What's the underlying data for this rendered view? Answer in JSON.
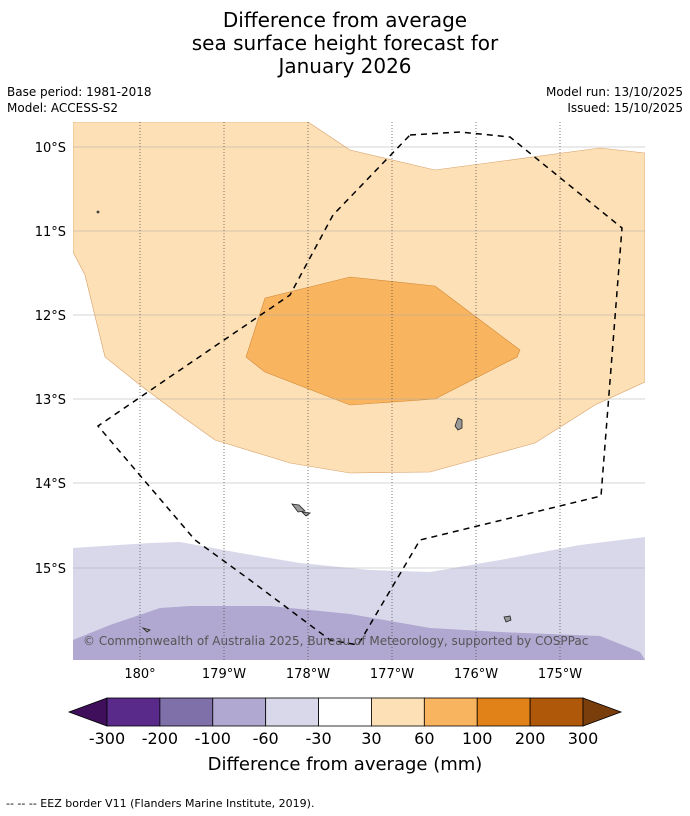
{
  "title": {
    "line1": "Difference from average",
    "line2": "sea surface height forecast for",
    "line3": "January 2026"
  },
  "meta": {
    "base_period": "Base period: 1981-2018",
    "model": "Model: ACCESS-S2",
    "model_run": "Model run: 13/10/2025",
    "issued": "Issued: 15/10/2025"
  },
  "map": {
    "lat_labels": [
      "10°S",
      "11°S",
      "12°S",
      "13°S",
      "14°S",
      "15°S"
    ],
    "lon_labels": [
      "180°",
      "179°W",
      "178°W",
      "177°W",
      "176°W",
      "175°W"
    ],
    "copyright": "© Commonwealth of Australia 2025, Bureau of Meteorology, supported by COSPPac",
    "eez_style": "dashed"
  },
  "colorbar": {
    "labels": [
      "-300",
      "-200",
      "-100",
      "-60",
      "-30",
      "30",
      "60",
      "100",
      "200",
      "300"
    ],
    "colors": [
      "#3f0f5c",
      "#5a2a8a",
      "#8070aa",
      "#b0a8d0",
      "#d8d8ea",
      "#ffffff",
      "#fde0b5",
      "#f9b460",
      "#e08218",
      "#b0580a",
      "#7a3e0c"
    ],
    "title": "Difference from average (mm)"
  },
  "footnote": "--  --  -- EEZ border V11 (Flanders Marine Institute, 2019)."
}
